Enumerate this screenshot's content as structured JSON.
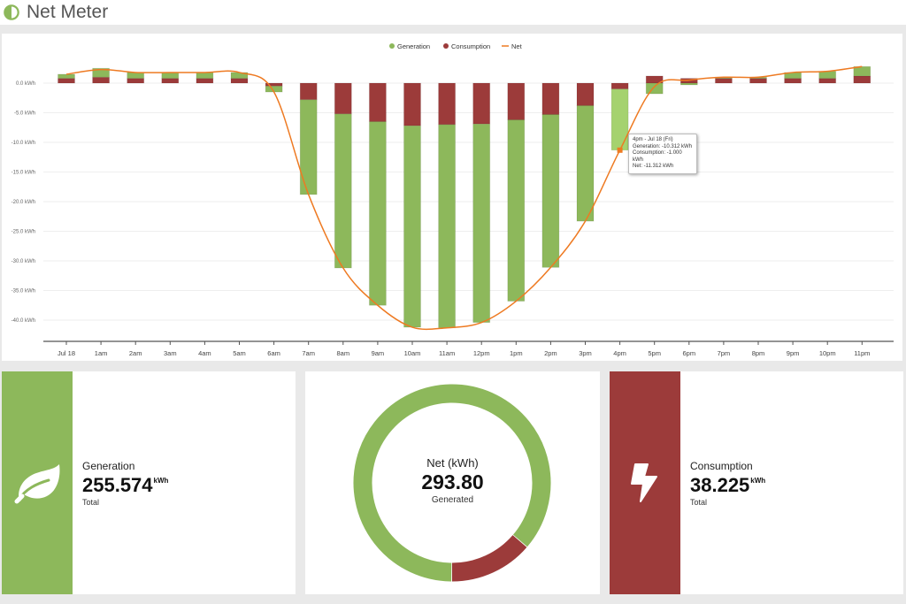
{
  "header": {
    "title": "Net Meter",
    "logo_icon": "half-circle-icon"
  },
  "colors": {
    "generation": "#8db85b",
    "generation_highlight": "#a5d26f",
    "consumption": "#9c3b3a",
    "net": "#ee7a22",
    "grid": "#eeeeee"
  },
  "chart_data": {
    "type": "bar",
    "stacked": true,
    "title": "",
    "xlabel": "",
    "ylabel": "",
    "ylim": [
      -43,
      3
    ],
    "yticks": [
      "0.0 kWh",
      "-5.0 kWh",
      "-10.0 kWh",
      "-15.0 kWh",
      "-20.0 kWh",
      "-25.0 kWh",
      "-30.0 kWh",
      "-35.0 kWh",
      "-40.0 kWh"
    ],
    "ytick_values": [
      0,
      -5,
      -10,
      -15,
      -20,
      -25,
      -30,
      -35,
      -40
    ],
    "legend": [
      "Generation",
      "Consumption",
      "Net"
    ],
    "legend_position": "top",
    "grid": true,
    "categories": [
      "Jul 18",
      "1am",
      "2am",
      "3am",
      "4am",
      "5am",
      "6am",
      "7am",
      "8am",
      "9am",
      "10am",
      "11am",
      "12pm",
      "1pm",
      "2pm",
      "3pm",
      "4pm",
      "5pm",
      "6pm",
      "7pm",
      "8pm",
      "9pm",
      "10pm",
      "11pm"
    ],
    "series": [
      {
        "name": "Generation",
        "type": "bar",
        "values": [
          0.7,
          1.5,
          1.0,
          1.0,
          1.0,
          1.0,
          -1.0,
          -16.0,
          -26.0,
          -31.0,
          -34.0,
          -34.3,
          -33.5,
          -30.6,
          -25.8,
          -19.5,
          -10.312,
          -1.8,
          -0.3,
          0.2,
          0.2,
          1.0,
          1.2,
          1.6
        ]
      },
      {
        "name": "Consumption",
        "type": "bar",
        "values": [
          0.8,
          1.0,
          0.8,
          0.8,
          0.8,
          0.8,
          -0.5,
          -2.8,
          -5.2,
          -6.5,
          -7.2,
          -7.0,
          -6.9,
          -6.2,
          -5.3,
          -3.8,
          -1.0,
          1.2,
          0.8,
          0.8,
          0.8,
          0.8,
          0.8,
          1.2
        ]
      },
      {
        "name": "Net",
        "type": "line",
        "values": [
          1.5,
          2.3,
          1.8,
          1.8,
          1.8,
          1.8,
          -1.5,
          -18.8,
          -31.2,
          -37.5,
          -41.2,
          -41.3,
          -40.4,
          -36.8,
          -31.1,
          -23.3,
          -11.312,
          -0.6,
          0.5,
          1.0,
          1.0,
          1.8,
          2.0,
          2.8
        ]
      }
    ],
    "tooltip": {
      "index": 16,
      "lines": [
        "4pm - Jul 18 (Fri)",
        "Generation: -10.312 kWh",
        "Consumption: -1.000 kWh",
        "Net: -11.312 kWh"
      ]
    }
  },
  "cards": {
    "generation": {
      "label": "Generation",
      "value": "255.574",
      "unit": "kWh",
      "sub": "Total",
      "icon": "leaf-icon"
    },
    "net": {
      "label": "Net (kWh)",
      "value": "293.80",
      "sub": "Generated",
      "donut": {
        "generation": 255.574,
        "consumption": 38.225
      }
    },
    "consumption": {
      "label": "Consumption",
      "value": "38.225",
      "unit": "kWh",
      "sub": "Total",
      "icon": "lightning-bolt-icon"
    }
  }
}
